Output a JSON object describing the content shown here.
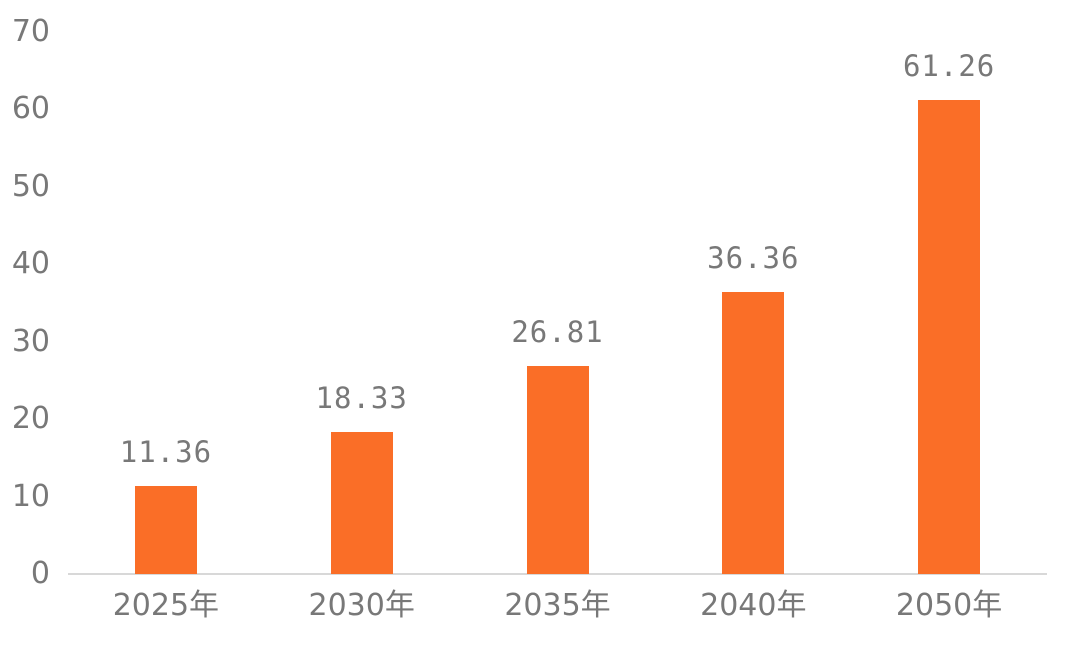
{
  "chart_data": {
    "type": "bar",
    "categories": [
      "2025年",
      "2030年",
      "2035年",
      "2040年",
      "2050年"
    ],
    "values": [
      11.36,
      18.33,
      26.81,
      36.36,
      61.26
    ],
    "value_labels": [
      "11.36",
      "18.33",
      "26.81",
      "36.36",
      "61.26"
    ],
    "yticks": [
      0,
      10,
      20,
      30,
      40,
      50,
      60,
      70
    ],
    "ylim": [
      0,
      70
    ],
    "title": "",
    "xlabel": "",
    "ylabel": "",
    "grid": false,
    "legend_position": "none",
    "colors": {
      "bar": "#FA6E27",
      "text": "#787878",
      "axis_line": "#D8D8D8",
      "background": "#FFFFFF"
    }
  }
}
